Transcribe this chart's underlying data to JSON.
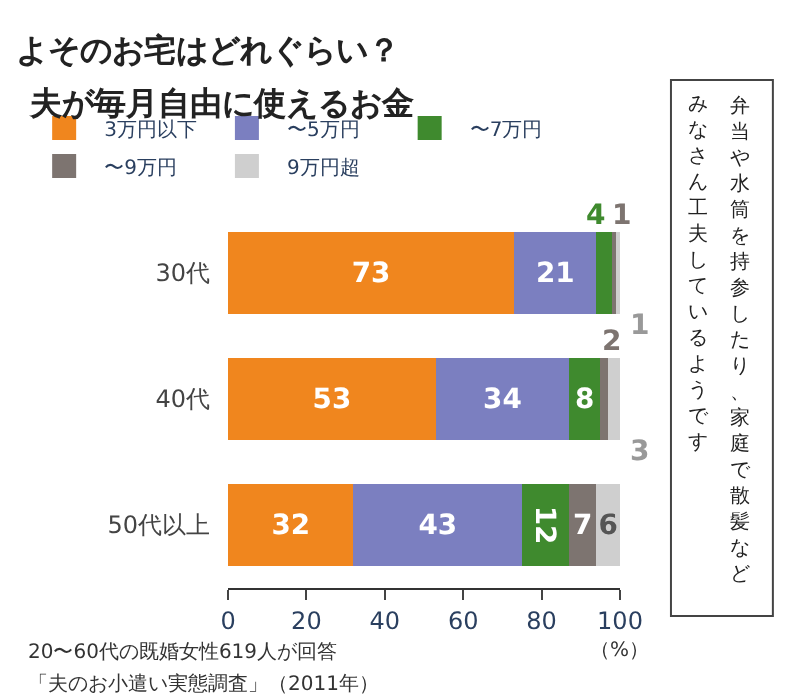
{
  "chart_data": {
    "type": "bar",
    "orientation": "horizontal",
    "stacked": true,
    "title": "よそのお宅はどれぐらい？",
    "subtitle": "夫が毎月自由に使えるお金",
    "xlabel": "（%）",
    "categories": [
      "30代",
      "40代",
      "50代以上"
    ],
    "series": [
      {
        "name": "3万円以下",
        "color": "#f0861e",
        "values": [
          73,
          53,
          32
        ]
      },
      {
        "name": "〜5万円",
        "color": "#7b7fc0",
        "values": [
          21,
          34,
          43
        ]
      },
      {
        "name": "〜7万円",
        "color": "#3f8a2e",
        "values": [
          4,
          8,
          12
        ]
      },
      {
        "name": "〜9万円",
        "color": "#7d7470",
        "values": [
          1,
          2,
          7
        ]
      },
      {
        "name": "9万円超",
        "color": "#cfcfcf",
        "values": [
          1,
          3,
          6
        ]
      }
    ],
    "xlim": [
      0,
      100
    ],
    "xticks": [
      0,
      20,
      40,
      60,
      80,
      100
    ],
    "legend": "top",
    "data_labels": true,
    "annotations": [
      "弁当や水筒を持参したり、家庭で散髪など",
      "みなさん工夫しているようです",
      "20〜60代の既婚女性619人が回答",
      "「夫のお小遣い実態調査」（2011年）"
    ]
  }
}
